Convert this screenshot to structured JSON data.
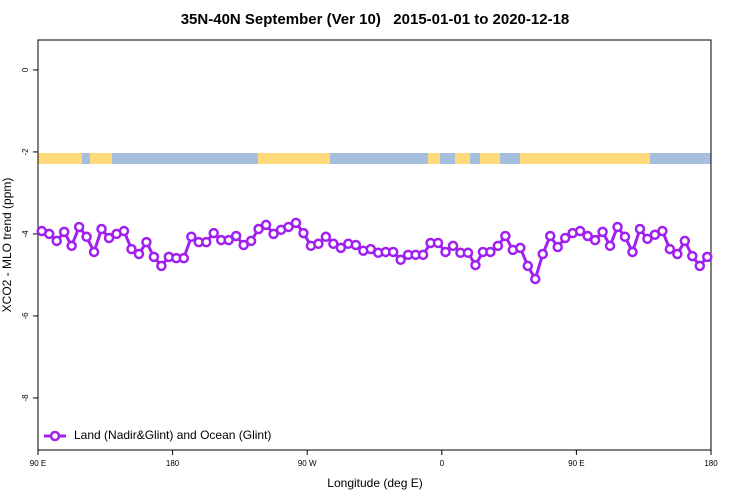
{
  "chart_data": {
    "type": "line",
    "title": "35N-40N September (Ver 10)   2015-01-01 to 2020-12-18",
    "xlabel": "Longitude (deg E)",
    "ylabel": "XCO2 - MLO trend (ppm)",
    "xlim": [
      90,
      540
    ],
    "ylim": [
      -9.27,
      0.73
    ],
    "xticks": [
      {
        "value": 90,
        "label": "90 E"
      },
      {
        "value": 180,
        "label": "180"
      },
      {
        "value": 270,
        "label": "90 W"
      },
      {
        "value": 360,
        "label": "0"
      },
      {
        "value": 450,
        "label": "90 E"
      },
      {
        "value": 540,
        "label": "180"
      }
    ],
    "yticks": [
      0,
      -2,
      -4,
      -6,
      -8
    ],
    "legend": "bottom-left",
    "x": [
      92.5,
      97.5,
      102.5,
      107.5,
      112.5,
      117.5,
      122.5,
      127.5,
      132.5,
      137.5,
      142.5,
      147.5,
      152.5,
      157.5,
      162.5,
      167.5,
      172.5,
      177.5,
      182.5,
      187.5,
      192.5,
      197.5,
      202.5,
      207.5,
      212.5,
      217.5,
      222.5,
      227.5,
      232.5,
      237.5,
      242.5,
      247.5,
      252.5,
      257.5,
      262.5,
      267.5,
      272.5,
      277.5,
      282.5,
      287.5,
      292.5,
      297.5,
      302.5,
      307.5,
      312.5,
      317.5,
      322.5,
      327.5,
      332.5,
      337.5,
      342.5,
      347.5,
      352.5,
      357.5,
      362.5,
      367.5,
      372.5,
      377.5,
      382.5,
      387.5,
      392.5,
      397.5,
      402.5,
      407.5,
      412.5,
      417.5,
      422.5,
      427.5,
      432.5,
      437.5,
      442.5,
      447.5,
      452.5,
      457.5,
      462.5,
      467.5,
      472.5,
      477.5,
      482.5,
      487.5,
      492.5,
      497.5,
      502.5,
      507.5,
      512.5,
      517.5,
      522.5,
      527.5,
      532.5,
      537.5
    ],
    "series": [
      {
        "name": "Land (Nadir&Glint) and Ocean (Glint)",
        "color": "#a020f0",
        "values": [
          -3.93,
          -4,
          -4.17,
          -3.95,
          -4.29,
          -3.83,
          -4.07,
          -4.44,
          -3.88,
          -4.1,
          -4,
          -3.93,
          -4.37,
          -4.49,
          -4.2,
          -4.56,
          -4.78,
          -4.56,
          -4.59,
          -4.59,
          -4.07,
          -4.2,
          -4.2,
          -3.98,
          -4.15,
          -4.15,
          -4.05,
          -4.27,
          -4.17,
          -3.88,
          -3.78,
          -4,
          -3.9,
          -3.83,
          -3.73,
          -3.98,
          -4.29,
          -4.24,
          -4.07,
          -4.24,
          -4.34,
          -4.24,
          -4.27,
          -4.41,
          -4.37,
          -4.46,
          -4.44,
          -4.44,
          -4.63,
          -4.51,
          -4.51,
          -4.51,
          -4.22,
          -4.22,
          -4.44,
          -4.29,
          -4.46,
          -4.46,
          -4.76,
          -4.44,
          -4.44,
          -4.29,
          -4.05,
          -4.39,
          -4.34,
          -4.78,
          -5.1,
          -4.49,
          -4.05,
          -4.32,
          -4.1,
          -3.98,
          -3.93,
          -4.05,
          -4.15,
          -3.95,
          -4.29,
          -3.83,
          -4.07,
          -4.44,
          -3.88,
          -4.12,
          -4.02,
          -3.93,
          -4.37,
          -4.49,
          -4.17,
          -4.54,
          -4.78,
          -4.56
        ]
      }
    ]
  }
}
